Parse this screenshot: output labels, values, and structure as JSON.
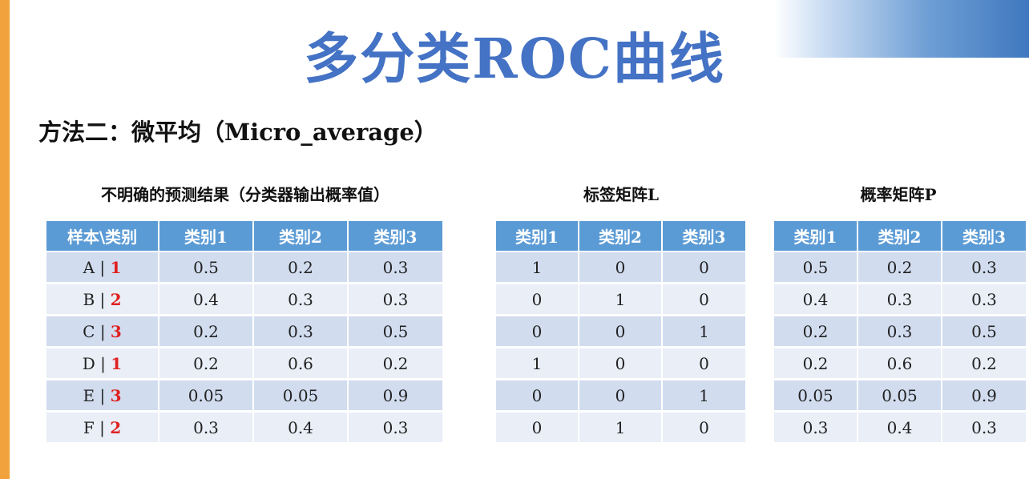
{
  "title": "多分类ROC曲线",
  "subtitle": "方法二：微平均（Micro_average）",
  "table1": {
    "caption": "不明确的预测结果（分类器输出概率值）",
    "headers": [
      "样本\\类别",
      "类别1",
      "类别2",
      "类别3"
    ],
    "rows": [
      {
        "sample": "A | ",
        "cls": "1",
        "values": [
          "0.5",
          "0.2",
          "0.3"
        ]
      },
      {
        "sample": "B | ",
        "cls": "2",
        "values": [
          "0.4",
          "0.3",
          "0.3"
        ]
      },
      {
        "sample": "C | ",
        "cls": "3",
        "values": [
          "0.2",
          "0.3",
          "0.5"
        ]
      },
      {
        "sample": "D | ",
        "cls": "1",
        "values": [
          "0.2",
          "0.6",
          "0.2"
        ]
      },
      {
        "sample": "E | ",
        "cls": "3",
        "values": [
          "0.05",
          "0.05",
          "0.9"
        ]
      },
      {
        "sample": "F | ",
        "cls": "2",
        "values": [
          "0.3",
          "0.4",
          "0.3"
        ]
      }
    ]
  },
  "table2": {
    "caption": "标签矩阵L",
    "headers": [
      "类别1",
      "类别2",
      "类别3"
    ],
    "rows": [
      [
        "1",
        "0",
        "0"
      ],
      [
        "0",
        "1",
        "0"
      ],
      [
        "0",
        "0",
        "1"
      ],
      [
        "1",
        "0",
        "0"
      ],
      [
        "0",
        "0",
        "1"
      ],
      [
        "0",
        "1",
        "0"
      ]
    ]
  },
  "table3": {
    "caption": "概率矩阵P",
    "headers": [
      "类别1",
      "类别2",
      "类别3"
    ],
    "rows": [
      [
        "0.5",
        "0.2",
        "0.3"
      ],
      [
        "0.4",
        "0.3",
        "0.3"
      ],
      [
        "0.2",
        "0.3",
        "0.5"
      ],
      [
        "0.2",
        "0.6",
        "0.2"
      ],
      [
        "0.05",
        "0.05",
        "0.9"
      ],
      [
        "0.3",
        "0.4",
        "0.3"
      ]
    ]
  },
  "colors": {
    "title": "#4472c4",
    "header_bg": "#5b9bd5",
    "row_dark": "#d1dcef",
    "row_light": "#e9eef7",
    "class_label": "#e02020",
    "left_bar": "#f2a23c"
  }
}
